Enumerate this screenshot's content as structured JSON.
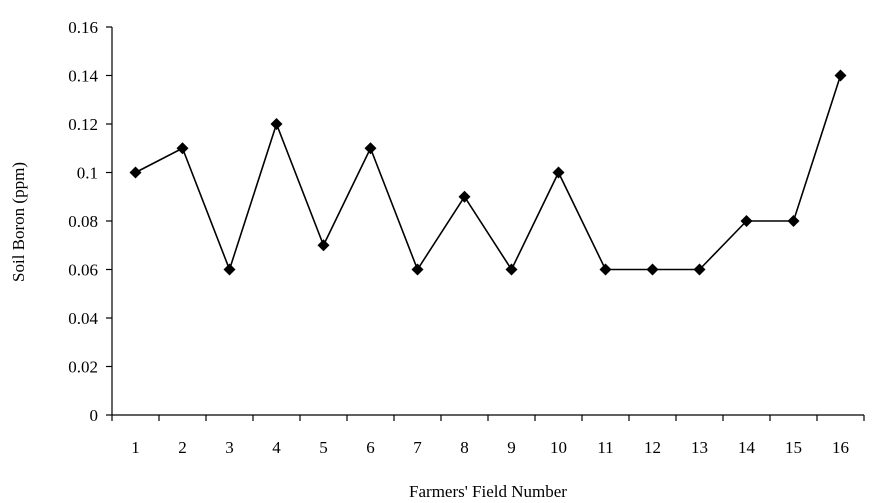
{
  "chart_data": {
    "type": "line",
    "title": "",
    "xlabel": "Farmers' Field Number",
    "ylabel": "Soil Boron (ppm)",
    "categories": [
      "1",
      "2",
      "3",
      "4",
      "5",
      "6",
      "7",
      "8",
      "9",
      "10",
      "11",
      "12",
      "13",
      "14",
      "15",
      "16"
    ],
    "series": [
      {
        "values": [
          0.1,
          0.11,
          0.06,
          0.12,
          0.07,
          0.11,
          0.06,
          0.09,
          0.06,
          0.1,
          0.06,
          0.06,
          0.06,
          0.08,
          0.08,
          0.14
        ],
        "color": "#000000",
        "marker": "diamond"
      }
    ],
    "ylim": [
      0,
      0.16
    ],
    "yticks": [
      "0",
      "0.02",
      "0.04",
      "0.06",
      "0.08",
      "0.1",
      "0.12",
      "0.14",
      "0.16"
    ],
    "grid": false,
    "legend": "none"
  }
}
